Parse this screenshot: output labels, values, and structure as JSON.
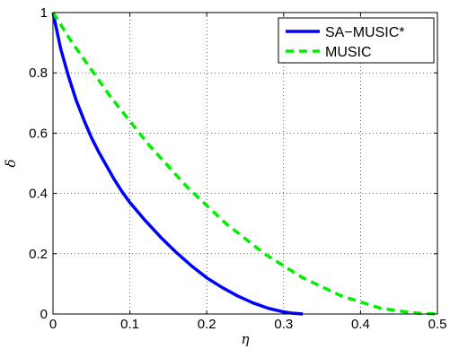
{
  "chart_data": {
    "type": "line",
    "title": "",
    "xlabel": "η",
    "ylabel": "δ",
    "xlim": [
      0,
      0.5
    ],
    "ylim": [
      0,
      1
    ],
    "xticks": [
      "0",
      "0.1",
      "0.2",
      "0.3",
      "0.4",
      "0.5"
    ],
    "yticks": [
      "0",
      "0.2",
      "0.4",
      "0.6",
      "0.8",
      "1"
    ],
    "grid": true,
    "legend_position": "top-right",
    "series": [
      {
        "name": "SA−MUSIC*",
        "color": "#0000ff",
        "style": "solid",
        "x": [
          0,
          0.01,
          0.02,
          0.03,
          0.04,
          0.05,
          0.06,
          0.07,
          0.08,
          0.09,
          0.1,
          0.12,
          0.14,
          0.16,
          0.18,
          0.2,
          0.22,
          0.24,
          0.26,
          0.28,
          0.3,
          0.31,
          0.32,
          0.325
        ],
        "y": [
          1.0,
          0.88,
          0.79,
          0.71,
          0.645,
          0.585,
          0.535,
          0.49,
          0.445,
          0.405,
          0.37,
          0.31,
          0.255,
          0.205,
          0.16,
          0.12,
          0.088,
          0.06,
          0.037,
          0.019,
          0.007,
          0.003,
          0.001,
          0
        ]
      },
      {
        "name": "MUSIC",
        "color": "#00ee00",
        "style": "dashed",
        "x": [
          0,
          0.025,
          0.05,
          0.075,
          0.1,
          0.125,
          0.15,
          0.175,
          0.2,
          0.225,
          0.25,
          0.275,
          0.3,
          0.325,
          0.35,
          0.375,
          0.4,
          0.425,
          0.45,
          0.475,
          0.5
        ],
        "y": [
          1.0,
          0.9,
          0.81,
          0.72,
          0.64,
          0.56,
          0.49,
          0.42,
          0.36,
          0.3,
          0.25,
          0.2,
          0.16,
          0.12,
          0.09,
          0.06,
          0.04,
          0.02,
          0.01,
          0.0025,
          0
        ]
      }
    ]
  }
}
